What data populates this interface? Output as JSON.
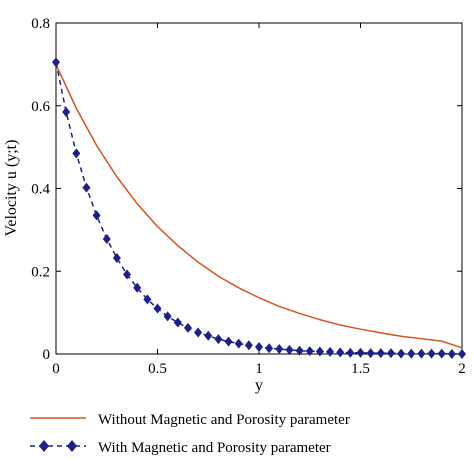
{
  "chart_data": {
    "type": "line",
    "xlabel": "y",
    "ylabel": "Velocity u (y;t)",
    "xlim": [
      0,
      2
    ],
    "ylim": [
      0,
      0.8
    ],
    "x_ticks": [
      0,
      0.5,
      1,
      1.5,
      2
    ],
    "y_ticks": [
      0,
      0.2,
      0.4,
      0.6,
      0.8
    ],
    "x_tick_labels": [
      "0",
      "0.5",
      "1",
      "1.5",
      "2"
    ],
    "y_tick_labels": [
      "0",
      "0.2",
      "0.4",
      "0.6",
      "0.8"
    ],
    "grid": false,
    "legend_position": "bottom",
    "series": [
      {
        "name": "Without Magnetic and Porosity parameter",
        "color": "#d9531e",
        "style": "solid",
        "x": [
          0,
          0.1,
          0.2,
          0.3,
          0.4,
          0.5,
          0.6,
          0.7,
          0.8,
          0.9,
          1.0,
          1.1,
          1.2,
          1.3,
          1.4,
          1.5,
          1.6,
          1.7,
          1.8,
          1.9,
          2.0
        ],
        "y": [
          0.7,
          0.594,
          0.504,
          0.428,
          0.363,
          0.308,
          0.262,
          0.222,
          0.188,
          0.16,
          0.136,
          0.115,
          0.098,
          0.083,
          0.07,
          0.06,
          0.051,
          0.043,
          0.037,
          0.031,
          0.015
        ]
      },
      {
        "name": "With Magnetic and Porosity parameter",
        "color": "#1f1f8c",
        "style": "dashed-diamond",
        "x": [
          0,
          0.05,
          0.1,
          0.15,
          0.2,
          0.25,
          0.3,
          0.35,
          0.4,
          0.45,
          0.5,
          0.55,
          0.6,
          0.65,
          0.7,
          0.75,
          0.8,
          0.85,
          0.9,
          0.95,
          1.0,
          1.05,
          1.1,
          1.15,
          1.2,
          1.25,
          1.3,
          1.35,
          1.4,
          1.45,
          1.5,
          1.55,
          1.6,
          1.65,
          1.7,
          1.75,
          1.8,
          1.85,
          1.9,
          1.95,
          2.0
        ],
        "y": [
          0.705,
          0.585,
          0.485,
          0.402,
          0.335,
          0.278,
          0.232,
          0.192,
          0.16,
          0.132,
          0.11,
          0.091,
          0.076,
          0.063,
          0.052,
          0.044,
          0.036,
          0.03,
          0.025,
          0.021,
          0.017,
          0.014,
          0.012,
          0.01,
          0.008,
          0.007,
          0.006,
          0.005,
          0.004,
          0.003,
          0.003,
          0.002,
          0.002,
          0.002,
          0.001,
          0.001,
          0.001,
          0.001,
          0.001,
          0.0,
          0.0
        ]
      }
    ]
  }
}
